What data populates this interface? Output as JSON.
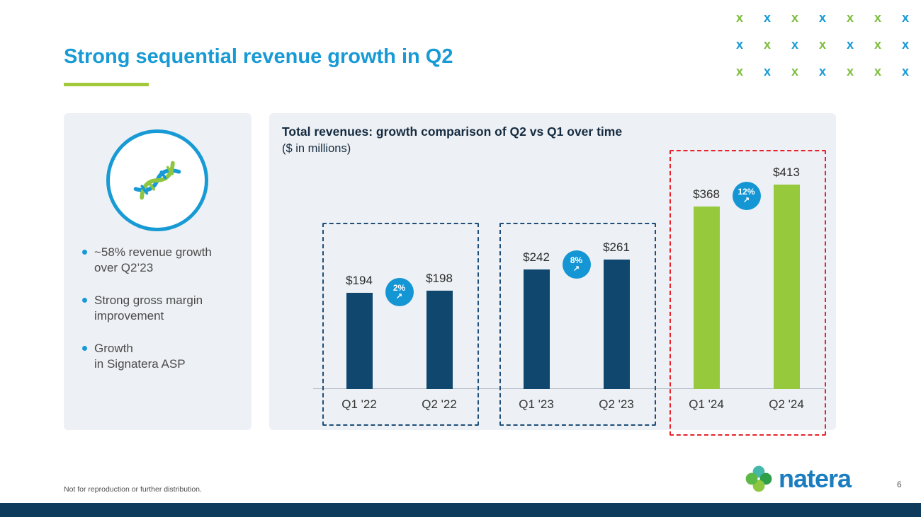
{
  "page": {
    "title": "Strong sequential revenue growth in Q2",
    "footer_note": "Not for reproduction or further distribution.",
    "page_number": "6",
    "brand": "natera"
  },
  "left_panel": {
    "bullets": [
      {
        "line1": "~58% revenue growth",
        "line2": "over Q2’23"
      },
      {
        "line1": "Strong gross margin",
        "line2": "improvement"
      },
      {
        "line1": "Growth",
        "line2": "in Signatera ASP"
      }
    ]
  },
  "chart_data": {
    "type": "bar",
    "title": "Total revenues: growth comparison of Q2 vs Q1 over time",
    "subtitle": "($ in millions)",
    "categories": [
      "Q1 '22",
      "Q2 '22",
      "Q1 '23",
      "Q2 '23",
      "Q1 '24",
      "Q2 '24"
    ],
    "values": [
      194,
      198,
      242,
      261,
      368,
      413
    ],
    "value_labels": [
      "$194",
      "$198",
      "$242",
      "$261",
      "$368",
      "$413"
    ],
    "badge_arrow": "↗",
    "grid": false,
    "legend": false,
    "ylim": [
      0,
      450
    ],
    "groups": [
      {
        "year": "2022",
        "categories": [
          "Q1 '22",
          "Q2 '22"
        ],
        "values": [
          194,
          198
        ],
        "growth": "2%",
        "bar_color": "#10476E",
        "box_color": "#1E4E79"
      },
      {
        "year": "2023",
        "categories": [
          "Q1 '23",
          "Q2 '23"
        ],
        "values": [
          242,
          261
        ],
        "growth": "8%",
        "bar_color": "#10476E",
        "box_color": "#1E4E79"
      },
      {
        "year": "2024",
        "categories": [
          "Q1 '24",
          "Q2 '24"
        ],
        "values": [
          368,
          413
        ],
        "growth": "12%",
        "bar_color": "#97C93D",
        "box_color": "#E8222A"
      }
    ]
  },
  "decor": {
    "glyph": "x",
    "green": "#7DBE3C",
    "blue": "#189AD5",
    "x_rows": [
      [
        "green",
        "blue",
        "green",
        "blue",
        "green",
        "green",
        "blue"
      ],
      [
        "blue",
        "green",
        "blue",
        "green",
        "blue",
        "green",
        "blue"
      ],
      [
        "green",
        "blue",
        "green",
        "blue",
        "green",
        "green",
        "blue"
      ]
    ]
  },
  "colors": {
    "title_blue": "#189AD5",
    "underline_green": "#A2C93B",
    "navy_bar": "#10476E",
    "green_bar": "#97C93D",
    "badge_blue": "#1496D4",
    "red_box": "#E8222A",
    "panel_bg": "#EDF0F4",
    "bottom_bar": "#0E3A5C"
  }
}
